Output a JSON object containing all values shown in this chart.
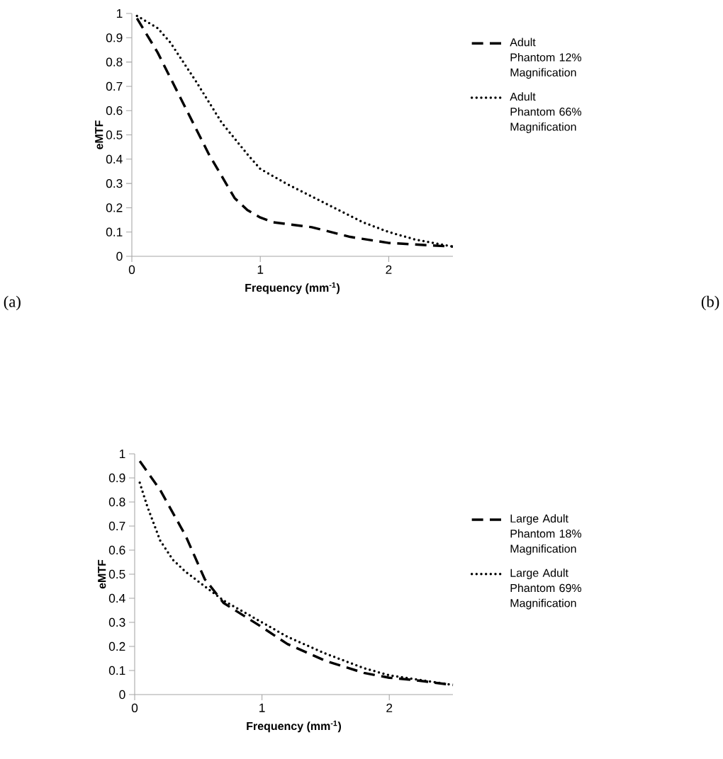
{
  "chart_data": [
    {
      "type": "line",
      "xlabel": "Frequency (mm$^{-1}$)",
      "ylabel": "eMTF",
      "xlim": [
        0,
        2.5
      ],
      "ylim": [
        0,
        1
      ],
      "xticks": [
        0,
        1,
        2
      ],
      "yticks": [
        0,
        0.1,
        0.2,
        0.3,
        0.4,
        0.5,
        0.6,
        0.7,
        0.8,
        0.9,
        1
      ],
      "grid": false,
      "legend": "right",
      "annotations": [
        "(a)"
      ],
      "series": [
        {
          "name": "Adult Phantom 12% Magnification",
          "color": "#000000",
          "line_style": "dashed",
          "x": [
            0.04,
            0.2,
            0.4,
            0.6,
            0.8,
            0.9,
            1.0,
            1.1,
            1.4,
            1.7,
            2.0,
            2.5
          ],
          "values": [
            0.98,
            0.84,
            0.63,
            0.42,
            0.24,
            0.19,
            0.16,
            0.14,
            0.12,
            0.08,
            0.055,
            0.04
          ]
        },
        {
          "name": "Adult Phantom 66% Magnification",
          "color": "#000000",
          "line_style": "dotted",
          "x": [
            0.04,
            0.2,
            0.3,
            0.5,
            0.7,
            0.9,
            1.0,
            1.2,
            1.5,
            1.8,
            2.0,
            2.2,
            2.5
          ],
          "values": [
            0.99,
            0.94,
            0.88,
            0.72,
            0.55,
            0.42,
            0.36,
            0.3,
            0.22,
            0.14,
            0.1,
            0.07,
            0.04
          ]
        }
      ]
    },
    {
      "type": "line",
      "xlabel": "Frequency (mm$^{-1}$)",
      "ylabel": "eMTF",
      "xlim": [
        0,
        2.5
      ],
      "ylim": [
        0,
        1
      ],
      "xticks": [
        0,
        1,
        2
      ],
      "yticks": [
        0,
        0.1,
        0.2,
        0.3,
        0.4,
        0.5,
        0.6,
        0.7,
        0.8,
        0.9,
        1
      ],
      "grid": false,
      "legend": "right",
      "annotations": [
        "(b)"
      ],
      "series": [
        {
          "name": "Large Adult Phantom 18% Magnification",
          "color": "#000000",
          "line_style": "dashed",
          "x": [
            0.04,
            0.2,
            0.4,
            0.55,
            0.7,
            1.0,
            1.2,
            1.5,
            1.8,
            2.0,
            2.2,
            2.5
          ],
          "values": [
            0.97,
            0.85,
            0.66,
            0.48,
            0.38,
            0.28,
            0.21,
            0.14,
            0.09,
            0.07,
            0.06,
            0.04
          ]
        },
        {
          "name": "Large Adult Phantom 69% Magnification",
          "color": "#000000",
          "line_style": "dotted",
          "x": [
            0.04,
            0.1,
            0.2,
            0.3,
            0.4,
            0.55,
            0.7,
            1.0,
            1.2,
            1.5,
            1.8,
            2.0,
            2.5
          ],
          "values": [
            0.88,
            0.78,
            0.64,
            0.56,
            0.51,
            0.45,
            0.39,
            0.3,
            0.24,
            0.17,
            0.11,
            0.08,
            0.04
          ]
        }
      ]
    }
  ]
}
